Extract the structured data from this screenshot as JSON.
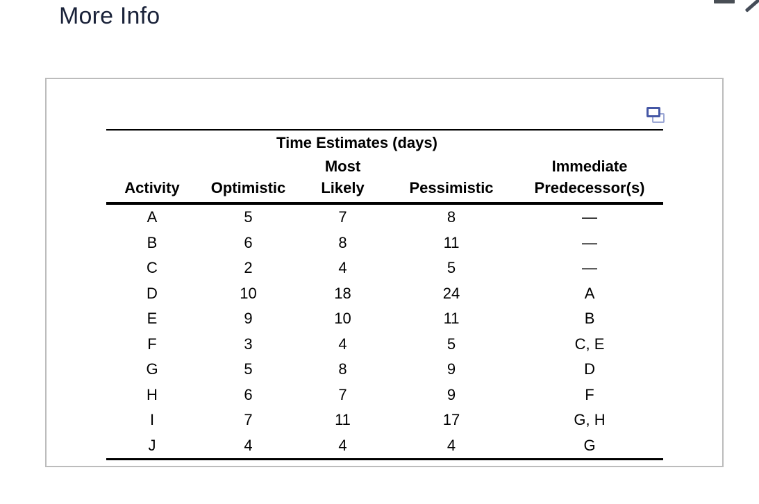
{
  "page": {
    "title": "More Info"
  },
  "icons": {
    "copy_table": "duplicate-rectangles",
    "top_right_fragments": "cropped-icon-fragments"
  },
  "colors": {
    "title_text": "#1a2239",
    "panel_border": "#bcbcbc",
    "copy_icon_front": "#4557a5",
    "copy_icon_back": "#9da8d5",
    "table_text": "#000000"
  },
  "table": {
    "group_header": "Time Estimates (days)",
    "columns": {
      "activity": "Activity",
      "optimistic": "Optimistic",
      "most_likely_line1": "Most",
      "most_likely_line2": "Likely",
      "pessimistic": "Pessimistic",
      "predecessor_line1": "Immediate",
      "predecessor_line2": "Predecessor(s)"
    },
    "rows": [
      {
        "activity": "A",
        "optimistic": "5",
        "most_likely": "7",
        "pessimistic": "8",
        "predecessors": "—"
      },
      {
        "activity": "B",
        "optimistic": "6",
        "most_likely": "8",
        "pessimistic": "11",
        "predecessors": "—"
      },
      {
        "activity": "C",
        "optimistic": "2",
        "most_likely": "4",
        "pessimistic": "5",
        "predecessors": "—"
      },
      {
        "activity": "D",
        "optimistic": "10",
        "most_likely": "18",
        "pessimistic": "24",
        "predecessors": "A"
      },
      {
        "activity": "E",
        "optimistic": "9",
        "most_likely": "10",
        "pessimistic": "11",
        "predecessors": "B"
      },
      {
        "activity": "F",
        "optimistic": "3",
        "most_likely": "4",
        "pessimistic": "5",
        "predecessors": "C, E"
      },
      {
        "activity": "G",
        "optimistic": "5",
        "most_likely": "8",
        "pessimistic": "9",
        "predecessors": "D"
      },
      {
        "activity": "H",
        "optimistic": "6",
        "most_likely": "7",
        "pessimistic": "9",
        "predecessors": "F"
      },
      {
        "activity": "I",
        "optimistic": "7",
        "most_likely": "11",
        "pessimistic": "17",
        "predecessors": "G, H"
      },
      {
        "activity": "J",
        "optimistic": "4",
        "most_likely": "4",
        "pessimistic": "4",
        "predecessors": "G"
      }
    ]
  }
}
